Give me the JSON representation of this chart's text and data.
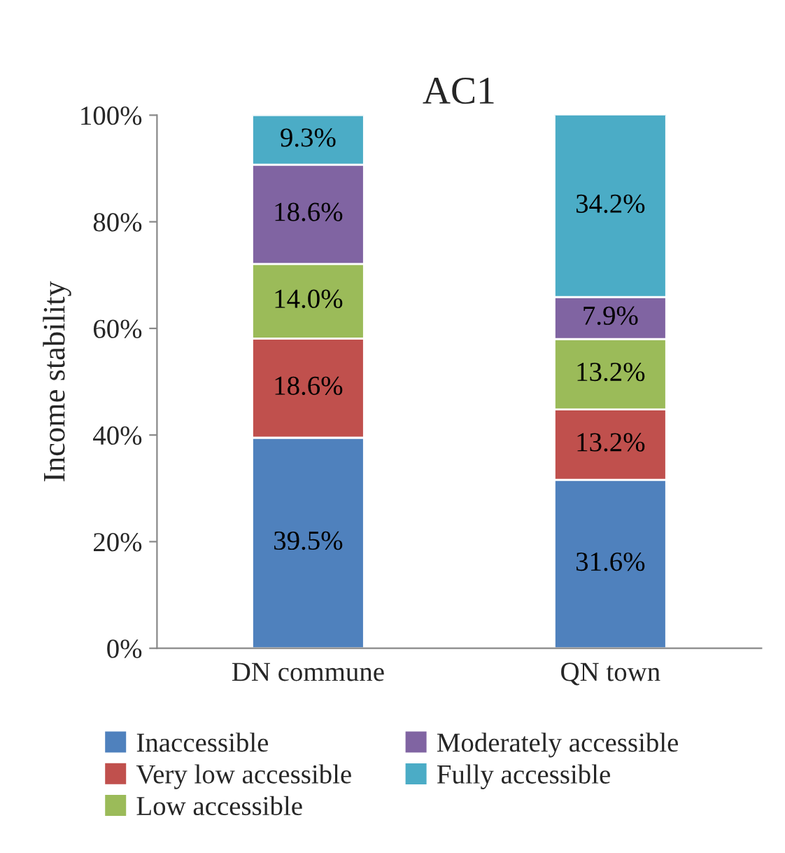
{
  "chart_data": {
    "type": "bar",
    "title": "AC1",
    "ylabel": "Income stability",
    "categories": [
      "DN commune",
      "QN town"
    ],
    "stacked": true,
    "legend": "bottom",
    "grid": false,
    "ylim": [
      0,
      100
    ],
    "yticks": [
      {
        "value": 0,
        "label": "0%"
      },
      {
        "value": 20,
        "label": "20%"
      },
      {
        "value": 40,
        "label": "40%"
      },
      {
        "value": 60,
        "label": "60%"
      },
      {
        "value": 80,
        "label": "80%"
      },
      {
        "value": 100,
        "label": "100%"
      }
    ],
    "series": [
      {
        "name": "Inaccessible",
        "color": "#4f81bd",
        "values": [
          39.5,
          31.6
        ],
        "value_labels": [
          "39.5%",
          "31.6%"
        ]
      },
      {
        "name": "Very low accessible",
        "color": "#c0504d",
        "values": [
          18.6,
          13.2
        ],
        "value_labels": [
          "18.6%",
          "13.2%"
        ]
      },
      {
        "name": "Low accessible",
        "color": "#9bbb59",
        "values": [
          14.0,
          13.2
        ],
        "value_labels": [
          "14.0%",
          "13.2%"
        ]
      },
      {
        "name": "Moderately accessible",
        "color": "#8064a2",
        "values": [
          18.6,
          7.9
        ],
        "value_labels": [
          "18.6%",
          "7.9%"
        ]
      },
      {
        "name": "Fully accessible",
        "color": "#4bacc6",
        "values": [
          9.3,
          34.2
        ],
        "value_labels": [
          "9.3%",
          "34.2%"
        ]
      }
    ]
  }
}
